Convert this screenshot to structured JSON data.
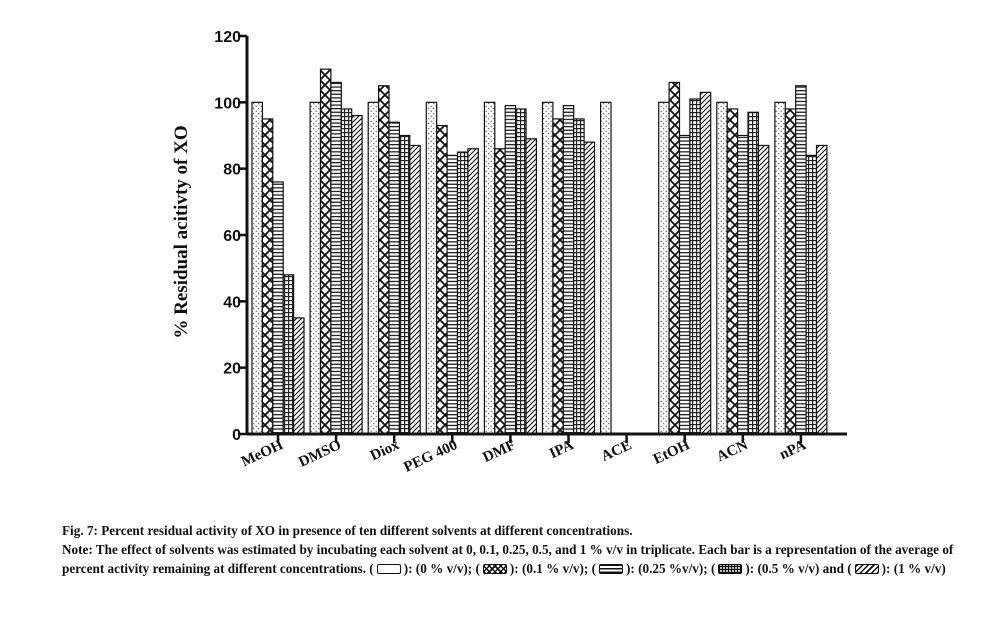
{
  "chart_data": {
    "type": "bar",
    "title": "",
    "xlabel": "",
    "ylabel": "% Residual acitivty of XO",
    "ylim": [
      0,
      120
    ],
    "yticks": [
      0,
      20,
      40,
      60,
      80,
      100,
      120
    ],
    "grid": false,
    "categories": [
      "MeOH",
      "DMSO",
      "Diox",
      "PEG 400",
      "DMF",
      "IPA",
      "ACE",
      "EtOH",
      "ACN",
      "nPA"
    ],
    "series": [
      {
        "values": [
          100,
          100,
          100,
          100,
          100,
          100,
          100,
          100,
          100,
          100
        ]
      },
      {
        "values": [
          95,
          110,
          105,
          93,
          86,
          95,
          0,
          106,
          98,
          98
        ]
      },
      {
        "values": [
          76,
          106,
          94,
          84,
          99,
          99,
          0,
          90,
          90,
          105
        ]
      },
      {
        "values": [
          48,
          98,
          90,
          85,
          98,
          95,
          0,
          101,
          97,
          84
        ]
      },
      {
        "values": [
          35,
          96,
          87,
          86,
          89,
          88,
          0,
          103,
          87,
          87
        ]
      }
    ]
  },
  "caption": {
    "fig_title": "Fig. 7: Percent residual activity of XO in presence of ten different solvents at different concentrations.",
    "note_text": "Note: The effect of solvents was estimated by incubating each solvent at 0, 0.1, 0.25, 0.5, and 1 % v/v in triplicate. Each bar is a representation of the average of percent activity remaining at different concentrations.",
    "legend_items": [
      {
        "label": "(0 % v/v);"
      },
      {
        "label": "(0.1 % v/v);"
      },
      {
        "label": "(0.25 %v/v);"
      },
      {
        "label": "(0.5 % v/v) and"
      },
      {
        "label": "(1 % v/v)"
      }
    ]
  }
}
